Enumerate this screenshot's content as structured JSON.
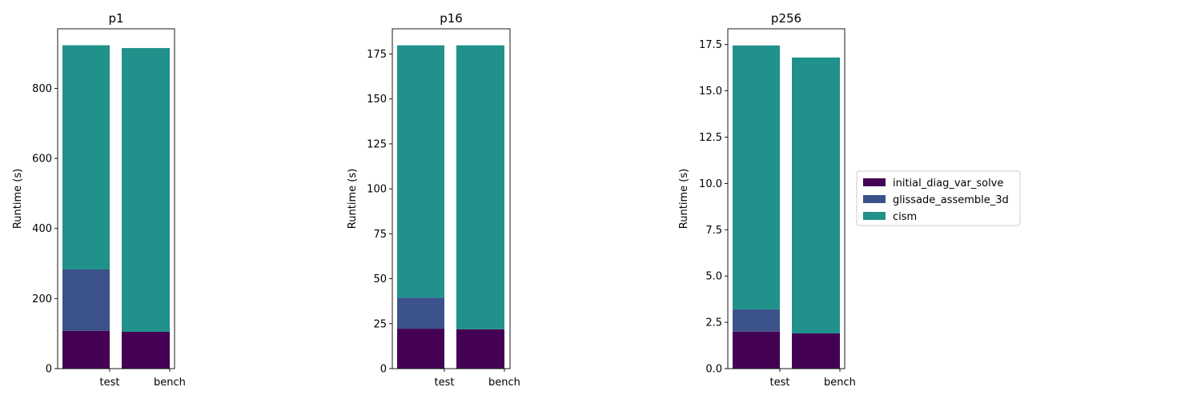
{
  "chart_data": [
    {
      "type": "bar",
      "stacked": true,
      "title": "p1",
      "ylabel": "Runtime (s)",
      "xlabel": "",
      "categories": [
        "test",
        "bench"
      ],
      "ylim": [
        0,
        970
      ],
      "yticks": [
        0,
        200,
        400,
        600,
        800
      ],
      "ytick_labels": [
        "0",
        "200",
        "400",
        "600",
        "800"
      ],
      "series": [
        {
          "name": "initial_diag_var_solve",
          "values": [
            108,
            105
          ]
        },
        {
          "name": "glissade_assemble_3d",
          "values": [
            175,
            0
          ]
        },
        {
          "name": "cism",
          "values": [
            640,
            810
          ]
        }
      ]
    },
    {
      "type": "bar",
      "stacked": true,
      "title": "p16",
      "ylabel": "Runtime (s)",
      "xlabel": "",
      "categories": [
        "test",
        "bench"
      ],
      "ylim": [
        0,
        189
      ],
      "yticks": [
        0,
        25,
        50,
        75,
        100,
        125,
        150,
        175
      ],
      "ytick_labels": [
        "0",
        "25",
        "50",
        "75",
        "100",
        "125",
        "150",
        "175"
      ],
      "series": [
        {
          "name": "initial_diag_var_solve",
          "values": [
            22.2,
            21.9
          ]
        },
        {
          "name": "glissade_assemble_3d",
          "values": [
            17.3,
            0
          ]
        },
        {
          "name": "cism",
          "values": [
            140.3,
            157.9
          ]
        }
      ]
    },
    {
      "type": "bar",
      "stacked": true,
      "title": "p256",
      "ylabel": "Runtime (s)",
      "xlabel": "",
      "categories": [
        "test",
        "bench"
      ],
      "ylim": [
        0,
        18.35
      ],
      "yticks": [
        0,
        2.5,
        5,
        7.5,
        10,
        12.5,
        15,
        17.5
      ],
      "ytick_labels": [
        "0.0",
        "2.5",
        "5.0",
        "7.5",
        "10.0",
        "12.5",
        "15.0",
        "17.5"
      ],
      "series": [
        {
          "name": "initial_diag_var_solve",
          "values": [
            2.0,
            1.9
          ]
        },
        {
          "name": "glissade_assemble_3d",
          "values": [
            1.2,
            0
          ]
        },
        {
          "name": "cism",
          "values": [
            14.25,
            14.9
          ]
        }
      ]
    }
  ],
  "legend": {
    "placement": "right",
    "items": [
      {
        "label": "initial_diag_var_solve",
        "color": "#440154"
      },
      {
        "label": "glissade_assemble_3d",
        "color": "#3b528b"
      },
      {
        "label": "cism",
        "color": "#21918c"
      }
    ]
  },
  "colors": {
    "initial_diag_var_solve": "#440154",
    "glissade_assemble_3d": "#3b528b",
    "cism": "#21918c"
  }
}
